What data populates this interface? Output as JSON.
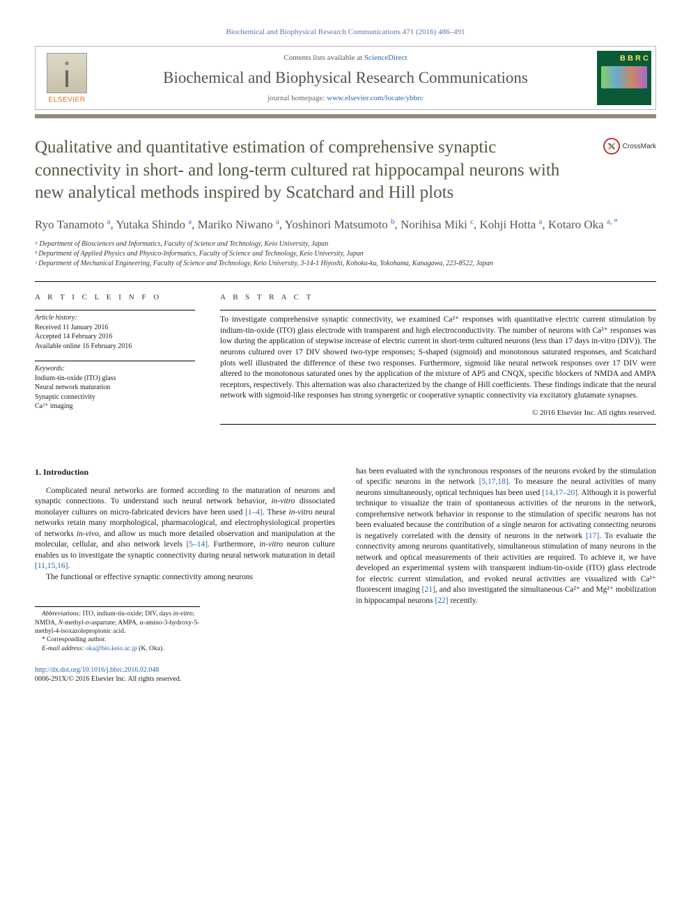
{
  "citation": "Biochemical and Biophysical Research Communications 471 (2016) 486–491",
  "header": {
    "contents_prefix": "Contents lists available at ",
    "contents_link": "ScienceDirect",
    "journal": "Biochemical and Biophysical Research Communications",
    "homepage_prefix": "journal homepage: ",
    "homepage_url": "www.elsevier.com/locate/ybbrc",
    "elsevier": "ELSEVIER",
    "cover_initials": "B\nB\nR\nC"
  },
  "crossmark": "CrossMark",
  "title": "Qualitative and quantitative estimation of comprehensive synaptic connectivity in short- and long-term cultured rat hippocampal neurons with new analytical methods inspired by Scatchard and Hill plots",
  "authors_html": "Ryo Tanamoto <sup>a</sup>, Yutaka Shindo <sup>a</sup>, Mariko Niwano <sup>a</sup>, Yoshinori Matsumoto <sup>b</sup>, Norihisa Miki <sup>c</sup>, Kohji Hotta <sup>a</sup>, Kotaro Oka <sup>a, <span class=\"ast\">*</span></sup>",
  "affiliations": [
    "ᵃ Department of Biosciences and Informatics, Faculty of Science and Technology, Keio University, Japan",
    "ᵇ Department of Applied Physics and Physico-Informatics, Faculty of Science and Technology, Keio University, Japan",
    "ᶜ Department of Mechanical Engineering, Faculty of Science and Technology, Keio University, 3-14-1 Hiyoshi, Kohoku-ku, Yokohama, Kanagawa, 223-8522, Japan"
  ],
  "info": {
    "heading": "A R T I C L E   I N F O",
    "history_label": "Article history:",
    "history": [
      "Received 11 January 2016",
      "Accepted 14 February 2016",
      "Available online 16 February 2016"
    ],
    "keywords_label": "Keywords:",
    "keywords": [
      "Indium-tin-oxide (ITO) glass",
      "Neural network maturation",
      "Synaptic connectivity",
      "Ca²⁺ imaging"
    ]
  },
  "abstract": {
    "heading": "A B S T R A C T",
    "text": "To investigate comprehensive synaptic connectivity, we examined Ca²⁺ responses with quantitative electric current stimulation by indium-tin-oxide (ITO) glass electrode with transparent and high electroconductivity. The number of neurons with Ca²⁺ responses was low during the application of stepwise increase of electric current in short-term cultured neurons (less than 17 days in-vitro (DIV)). The neurons cultured over 17 DIV showed two-type responses; S-shaped (sigmoid) and monotonous saturated responses, and Scatchard plots well illustrated the difference of these two responses. Furthermore, sigmoid like neural network responses over 17 DIV were altered to the monotonous saturated ones by the application of the mixture of AP5 and CNQX, specific blockers of NMDA and AMPA receptors, respectively. This alternation was also characterized by the change of Hill coefficients. These findings indicate that the neural network with sigmoid-like responses has strong synergetic or cooperative synaptic connectivity via excitatory glutamate synapses.",
    "copyright": "© 2016 Elsevier Inc. All rights reserved."
  },
  "section1": {
    "heading": "1. Introduction",
    "para1_html": "Complicated neural networks are formed according to the maturation of neurons and synaptic connections. To understand such neural network behavior, <i>in-vitro</i> dissociated monolayer cultures on micro-fabricated devices have been used <a href=\"#\">[1–4]</a>. These <i>in-vitro</i> neural networks retain many morphological, pharmacological, and electrophysiological properties of networks <i>in-vivo</i>, and allow us much more detailed observation and manipulation at the molecular, cellular, and also network levels <a href=\"#\">[5–14]</a>. Furthermore, <i>in-vitro</i> neuron culture enables us to investigate the synaptic connectivity during neural network maturation in detail <a href=\"#\">[11,15,16]</a>.",
    "para2": "The functional or effective synaptic connectivity among neurons",
    "col2_html": "has been evaluated with the synchronous responses of the neurons evoked by the stimulation of specific neurons in the network <a href=\"#\">[5,17,18]</a>. To measure the neural activities of many neurons simultaneously, optical techniques has been used <a href=\"#\">[14,17–20]</a>. Although it is powerful technique to visualize the train of spontaneous activities of the neurons in the network, comprehensive network behavior in response to the stimulation of specific neurons has not been evaluated because the contribution of a single neuron for activating connecting neurons is negatively correlated with the density of neurons in the network <a href=\"#\">[17]</a>. To evaluate the connectivity among neurons quantitatively, simultaneous stimulation of many neurons in the network and optical measurements of their activities are required. To achieve it, we have developed an experimental system with transparent indium-tin-oxide (ITO) glass electrode for electric current stimulation, and evoked neural activities are visualized with Ca²⁺ fluorescent imaging <a href=\"#\">[21]</a>, and also investigated the simultaneous Ca²⁺ and Mg²⁺ mobilization in hippocampal neurons <a href=\"#\">[22]</a> recently."
  },
  "footnotes": {
    "abbrev_html": "<i>Abbreviations:</i> ITO, indium-tin-oxide; DIV, days <i>in-vitro</i>; NMDA, <i>N</i>-methyl-ᴅ-aspartate; AMPA, α-amino-3-hydroxy-5-methyl-4-isoxazolepropionic acid.",
    "corresponding": "* Corresponding author.",
    "email_label": "E-mail address: ",
    "email": "oka@bio.keio.ac.jp",
    "email_suffix": " (K. Oka)."
  },
  "footer": {
    "doi": "http://dx.doi.org/10.1016/j.bbrc.2016.02.048",
    "issn": "0006-291X/© 2016 Elsevier Inc. All rights reserved."
  },
  "colors": {
    "link": "#2864a8",
    "header_rule": "#938c7c",
    "title_text": "#5c5648",
    "elsevier_orange": "#e86b1f",
    "cover_green": "#0a5a38"
  }
}
